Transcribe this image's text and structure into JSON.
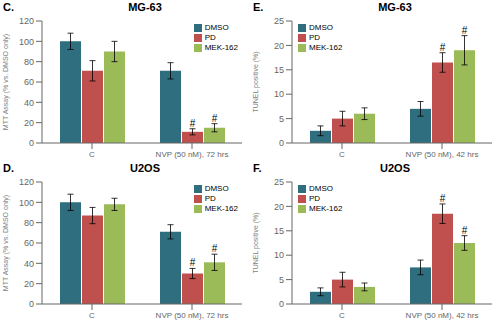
{
  "chart_data": [
    {
      "type": "bar",
      "title": "MG-63",
      "annotations": [
        "C."
      ],
      "ylabel": "MTT Assay (% vs. DMSO only)",
      "categories": [
        "C",
        "NVP (50 nM), 72 hrs"
      ],
      "series": [
        {
          "name": "DMSO",
          "color": "#2e6e7e",
          "values": [
            100,
            71
          ],
          "errors": [
            8,
            8
          ],
          "annotations": [
            null,
            null
          ]
        },
        {
          "name": "PD",
          "color": "#c0504d",
          "values": [
            71,
            11
          ],
          "errors": [
            10,
            3
          ],
          "annotations": [
            null,
            "#"
          ]
        },
        {
          "name": "MEK-162",
          "color": "#9bbb59",
          "values": [
            90,
            15
          ],
          "errors": [
            10,
            4
          ],
          "annotations": [
            null,
            "#"
          ]
        }
      ],
      "ylim": [
        0,
        120
      ],
      "yticks": [
        0,
        20,
        40,
        60,
        80,
        100,
        120
      ],
      "legend": "upper right",
      "grid": false
    },
    {
      "type": "bar",
      "title": "U2OS",
      "annotations": [
        "D."
      ],
      "ylabel": "MTT Assay (% vs. DMSO only)",
      "categories": [
        "C",
        "NVP (50 nM), 72 hrs"
      ],
      "series": [
        {
          "name": "DMSO",
          "color": "#2e6e7e",
          "values": [
            100,
            71
          ],
          "errors": [
            8,
            7
          ],
          "annotations": [
            null,
            null
          ]
        },
        {
          "name": "PD",
          "color": "#c0504d",
          "values": [
            87,
            30
          ],
          "errors": [
            8,
            5
          ],
          "annotations": [
            null,
            "#"
          ]
        },
        {
          "name": "MEK-162",
          "color": "#9bbb59",
          "values": [
            98,
            41
          ],
          "errors": [
            6,
            8
          ],
          "annotations": [
            null,
            "#"
          ]
        }
      ],
      "ylim": [
        0,
        120
      ],
      "yticks": [
        0,
        20,
        40,
        60,
        80,
        100,
        120
      ],
      "legend": "upper right",
      "grid": false
    },
    {
      "type": "bar",
      "title": "MG-63",
      "annotations": [
        "E."
      ],
      "ylabel": "TUNEL positive (%)",
      "categories": [
        "C",
        "NVP (50 nM), 42 hrs"
      ],
      "series": [
        {
          "name": "DMSO",
          "color": "#2e6e7e",
          "values": [
            2.5,
            7.0
          ],
          "errors": [
            1.0,
            1.5
          ],
          "annotations": [
            null,
            null
          ]
        },
        {
          "name": "PD",
          "color": "#c0504d",
          "values": [
            5.0,
            16.5
          ],
          "errors": [
            1.5,
            2.0
          ],
          "annotations": [
            null,
            "#"
          ]
        },
        {
          "name": "MEK-162",
          "color": "#9bbb59",
          "values": [
            6.0,
            19.0
          ],
          "errors": [
            1.2,
            3.0
          ],
          "annotations": [
            null,
            "#"
          ]
        }
      ],
      "ylim": [
        0,
        25
      ],
      "yticks": [
        0,
        5,
        10,
        15,
        20,
        25
      ],
      "legend": "upper left",
      "grid": false
    },
    {
      "type": "bar",
      "title": "U2OS",
      "annotations": [
        "F."
      ],
      "ylabel": "TUNEL positive (%)",
      "categories": [
        "C",
        "NVP (50 nM), 42 hrs"
      ],
      "series": [
        {
          "name": "DMSO",
          "color": "#2e6e7e",
          "values": [
            2.5,
            7.5
          ],
          "errors": [
            0.8,
            1.5
          ],
          "annotations": [
            null,
            null
          ]
        },
        {
          "name": "PD",
          "color": "#c0504d",
          "values": [
            5.0,
            18.5
          ],
          "errors": [
            1.5,
            2.0
          ],
          "annotations": [
            null,
            "#"
          ]
        },
        {
          "name": "MEK-162",
          "color": "#9bbb59",
          "values": [
            3.5,
            12.5
          ],
          "errors": [
            0.8,
            1.5
          ],
          "annotations": [
            null,
            "#"
          ]
        }
      ],
      "ylim": [
        0,
        25
      ],
      "yticks": [
        0,
        5,
        10,
        15,
        20,
        25
      ],
      "legend": "upper left",
      "grid": false
    }
  ]
}
